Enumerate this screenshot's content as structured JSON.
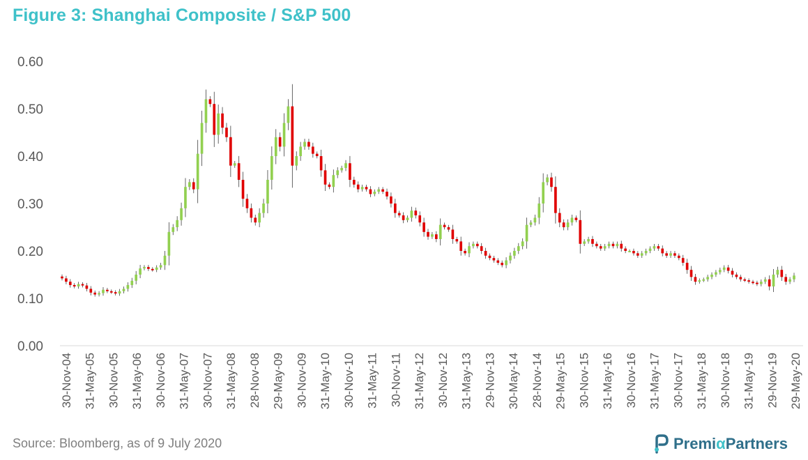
{
  "title": "Figure 3: Shanghai Composite / S&P 500",
  "source": "Source:  Bloomberg,  as of 9 July 2020",
  "logo": {
    "brand_before": "Premi",
    "brand_alpha": "α",
    "brand_after": "Partners",
    "icon": "premia-logo-icon"
  },
  "colors": {
    "up": "#92d050",
    "down": "#e00000",
    "title": "#3fc1c9",
    "axis_text": "#595959"
  },
  "chart_data": {
    "type": "candlestick",
    "title": "Figure 3: Shanghai Composite / S&P 500",
    "xlabel": "",
    "ylabel": "",
    "ylim": [
      0,
      0.6
    ],
    "yticks": [
      0.0,
      0.1,
      0.2,
      0.3,
      0.4,
      0.5,
      0.6
    ],
    "ytick_labels": [
      "0.00",
      "0.10",
      "0.20",
      "0.30",
      "0.40",
      "0.50",
      "0.60"
    ],
    "xtick_labels": [
      "30-Nov-04",
      "31-May-05",
      "30-Nov-05",
      "31-May-06",
      "30-Nov-06",
      "31-May-07",
      "30-Nov-07",
      "31-May-08",
      "28-Nov-08",
      "29-May-09",
      "30-Nov-09",
      "31-May-10",
      "30-Nov-10",
      "31-May-11",
      "30-Nov-11",
      "31-May-12",
      "30-Nov-12",
      "31-May-13",
      "29-Nov-13",
      "30-May-14",
      "28-Nov-14",
      "29-May-15",
      "30-Nov-15",
      "31-May-16",
      "30-Nov-16",
      "31-May-17",
      "30-Nov-17",
      "31-May-18",
      "30-Nov-18",
      "31-May-19",
      "29-Nov-19",
      "29-May-20"
    ],
    "grid": false,
    "legend": "none",
    "period": "monthly",
    "close": [
      0.142,
      0.135,
      0.128,
      0.125,
      0.13,
      0.127,
      0.12,
      0.112,
      0.108,
      0.111,
      0.118,
      0.115,
      0.113,
      0.11,
      0.115,
      0.12,
      0.128,
      0.137,
      0.15,
      0.163,
      0.166,
      0.162,
      0.16,
      0.165,
      0.17,
      0.19,
      0.24,
      0.25,
      0.265,
      0.29,
      0.335,
      0.345,
      0.33,
      0.405,
      0.47,
      0.52,
      0.51,
      0.445,
      0.49,
      0.46,
      0.44,
      0.38,
      0.385,
      0.35,
      0.31,
      0.29,
      0.27,
      0.26,
      0.28,
      0.3,
      0.35,
      0.4,
      0.44,
      0.42,
      0.47,
      0.505,
      0.38,
      0.4,
      0.42,
      0.43,
      0.42,
      0.405,
      0.4,
      0.37,
      0.34,
      0.335,
      0.36,
      0.37,
      0.375,
      0.385,
      0.35,
      0.34,
      0.33,
      0.335,
      0.33,
      0.32,
      0.325,
      0.33,
      0.325,
      0.315,
      0.3,
      0.28,
      0.275,
      0.265,
      0.27,
      0.285,
      0.275,
      0.26,
      0.24,
      0.23,
      0.235,
      0.225,
      0.255,
      0.25,
      0.245,
      0.225,
      0.22,
      0.2,
      0.195,
      0.21,
      0.215,
      0.21,
      0.2,
      0.19,
      0.185,
      0.18,
      0.175,
      0.17,
      0.18,
      0.19,
      0.2,
      0.21,
      0.22,
      0.255,
      0.26,
      0.27,
      0.3,
      0.345,
      0.355,
      0.335,
      0.28,
      0.26,
      0.25,
      0.26,
      0.27,
      0.265,
      0.215,
      0.22,
      0.225,
      0.215,
      0.21,
      0.205,
      0.21,
      0.215,
      0.21,
      0.215,
      0.205,
      0.2,
      0.2,
      0.195,
      0.19,
      0.195,
      0.2,
      0.205,
      0.21,
      0.205,
      0.195,
      0.19,
      0.195,
      0.19,
      0.185,
      0.175,
      0.16,
      0.145,
      0.135,
      0.138,
      0.14,
      0.145,
      0.15,
      0.155,
      0.16,
      0.165,
      0.158,
      0.15,
      0.145,
      0.14,
      0.138,
      0.135,
      0.133,
      0.13,
      0.135,
      0.14,
      0.125,
      0.15,
      0.16,
      0.145,
      0.135,
      0.14,
      0.148
    ]
  }
}
